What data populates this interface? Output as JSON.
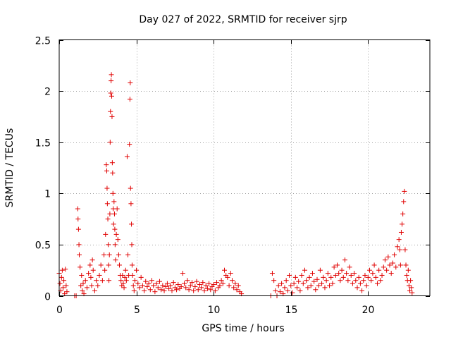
{
  "chart_data": {
    "type": "scatter",
    "title": "Day 027 of 2022, SRMTID for receiver sjrp",
    "xlabel": "GPS time / hours",
    "ylabel": "SRMTID / TECUs",
    "xlim": [
      0,
      24
    ],
    "ylim": [
      0,
      2.5
    ],
    "xticks": [
      0,
      5,
      10,
      15,
      20
    ],
    "xtick_labels": [
      "0",
      "5",
      "10",
      "15",
      "20"
    ],
    "yticks": [
      0,
      0.5,
      1,
      1.5,
      2,
      2.5
    ],
    "ytick_labels": [
      "0",
      "0.5",
      "1",
      "1.5",
      "2",
      "2.5"
    ],
    "grid": true,
    "marker": "+",
    "color": "#e00000",
    "series": [
      {
        "name": "SRMTID",
        "points": [
          [
            0.0,
            0.22
          ],
          [
            0.05,
            0.12
          ],
          [
            0.1,
            0.05
          ],
          [
            0.15,
            0.18
          ],
          [
            0.2,
            0.25
          ],
          [
            0.25,
            0.08
          ],
          [
            0.3,
            0.15
          ],
          [
            0.35,
            0.02
          ],
          [
            0.4,
            0.26
          ],
          [
            0.45,
            0.1
          ],
          [
            0.5,
            0.04
          ],
          [
            1.0,
            0.0
          ],
          [
            1.1,
            0.0
          ],
          [
            1.2,
            0.85
          ],
          [
            1.22,
            0.75
          ],
          [
            1.25,
            0.65
          ],
          [
            1.28,
            0.5
          ],
          [
            1.3,
            0.4
          ],
          [
            1.35,
            0.28
          ],
          [
            1.4,
            0.1
          ],
          [
            1.45,
            0.2
          ],
          [
            1.5,
            0.05
          ],
          [
            1.55,
            0.12
          ],
          [
            1.6,
            0.02
          ],
          [
            1.7,
            0.15
          ],
          [
            1.8,
            0.08
          ],
          [
            1.9,
            0.22
          ],
          [
            2.0,
            0.3
          ],
          [
            2.05,
            0.18
          ],
          [
            2.1,
            0.1
          ],
          [
            2.15,
            0.35
          ],
          [
            2.2,
            0.25
          ],
          [
            2.3,
            0.05
          ],
          [
            2.4,
            0.15
          ],
          [
            2.5,
            0.1
          ],
          [
            2.6,
            0.2
          ],
          [
            2.7,
            0.3
          ],
          [
            2.8,
            0.15
          ],
          [
            2.9,
            0.4
          ],
          [
            2.95,
            0.25
          ],
          [
            3.0,
            0.6
          ],
          [
            3.05,
            1.28
          ],
          [
            3.08,
            1.22
          ],
          [
            3.1,
            1.05
          ],
          [
            3.12,
            0.9
          ],
          [
            3.15,
            0.75
          ],
          [
            3.18,
            0.5
          ],
          [
            3.2,
            0.3
          ],
          [
            3.22,
            0.15
          ],
          [
            3.25,
            0.4
          ],
          [
            3.28,
            0.8
          ],
          [
            3.3,
            1.5
          ],
          [
            3.32,
            1.8
          ],
          [
            3.34,
            1.98
          ],
          [
            3.36,
            2.1
          ],
          [
            3.38,
            2.16
          ],
          [
            3.4,
            1.95
          ],
          [
            3.42,
            1.75
          ],
          [
            3.44,
            1.3
          ],
          [
            3.46,
            1.2
          ],
          [
            3.48,
            1.0
          ],
          [
            3.5,
            0.85
          ],
          [
            3.52,
            0.7
          ],
          [
            3.55,
            0.92
          ],
          [
            3.58,
            0.8
          ],
          [
            3.6,
            0.65
          ],
          [
            3.62,
            0.5
          ],
          [
            3.65,
            0.35
          ],
          [
            3.7,
            0.6
          ],
          [
            3.75,
            0.85
          ],
          [
            3.8,
            0.55
          ],
          [
            3.85,
            0.4
          ],
          [
            3.9,
            0.3
          ],
          [
            3.95,
            0.2
          ],
          [
            4.0,
            0.15
          ],
          [
            4.05,
            0.1
          ],
          [
            4.1,
            0.2
          ],
          [
            4.15,
            0.12
          ],
          [
            4.2,
            0.08
          ],
          [
            4.25,
            0.18
          ],
          [
            4.3,
            0.25
          ],
          [
            4.35,
            0.15
          ],
          [
            4.4,
            1.36
          ],
          [
            4.45,
            0.4
          ],
          [
            4.5,
            0.2
          ],
          [
            4.55,
            1.48
          ],
          [
            4.58,
            1.92
          ],
          [
            4.6,
            2.08
          ],
          [
            4.62,
            1.05
          ],
          [
            4.65,
            0.9
          ],
          [
            4.68,
            0.7
          ],
          [
            4.7,
            0.5
          ],
          [
            4.72,
            0.3
          ],
          [
            4.75,
            0.2
          ],
          [
            4.8,
            0.1
          ],
          [
            4.85,
            0.05
          ],
          [
            4.9,
            0.15
          ],
          [
            5.0,
            0.25
          ],
          [
            5.1,
            0.12
          ],
          [
            5.2,
            0.08
          ],
          [
            5.3,
            0.18
          ],
          [
            5.4,
            0.1
          ],
          [
            5.5,
            0.05
          ],
          [
            5.6,
            0.14
          ],
          [
            5.7,
            0.09
          ],
          [
            5.8,
            0.12
          ],
          [
            5.9,
            0.06
          ],
          [
            6.0,
            0.15
          ],
          [
            6.1,
            0.1
          ],
          [
            6.2,
            0.04
          ],
          [
            6.3,
            0.12
          ],
          [
            6.4,
            0.08
          ],
          [
            6.5,
            0.14
          ],
          [
            6.6,
            0.06
          ],
          [
            6.7,
            0.1
          ],
          [
            6.8,
            0.05
          ],
          [
            6.9,
            0.09
          ],
          [
            7.0,
            0.12
          ],
          [
            7.1,
            0.07
          ],
          [
            7.2,
            0.1
          ],
          [
            7.3,
            0.05
          ],
          [
            7.4,
            0.13
          ],
          [
            7.5,
            0.08
          ],
          [
            7.6,
            0.06
          ],
          [
            7.7,
            0.11
          ],
          [
            7.8,
            0.07
          ],
          [
            7.9,
            0.09
          ],
          [
            8.0,
            0.22
          ],
          [
            8.1,
            0.12
          ],
          [
            8.2,
            0.08
          ],
          [
            8.3,
            0.15
          ],
          [
            8.4,
            0.06
          ],
          [
            8.5,
            0.1
          ],
          [
            8.6,
            0.13
          ],
          [
            8.7,
            0.05
          ],
          [
            8.8,
            0.09
          ],
          [
            8.9,
            0.14
          ],
          [
            9.0,
            0.06
          ],
          [
            9.1,
            0.11
          ],
          [
            9.2,
            0.08
          ],
          [
            9.3,
            0.13
          ],
          [
            9.4,
            0.05
          ],
          [
            9.5,
            0.1
          ],
          [
            9.6,
            0.07
          ],
          [
            9.7,
            0.12
          ],
          [
            9.8,
            0.06
          ],
          [
            9.9,
            0.09
          ],
          [
            10.0,
            0.11
          ],
          [
            10.1,
            0.05
          ],
          [
            10.2,
            0.13
          ],
          [
            10.3,
            0.08
          ],
          [
            10.4,
            0.1
          ],
          [
            10.5,
            0.15
          ],
          [
            10.6,
            0.12
          ],
          [
            10.7,
            0.25
          ],
          [
            10.8,
            0.2
          ],
          [
            10.9,
            0.18
          ],
          [
            11.0,
            0.1
          ],
          [
            11.1,
            0.22
          ],
          [
            11.2,
            0.15
          ],
          [
            11.3,
            0.08
          ],
          [
            11.4,
            0.12
          ],
          [
            11.5,
            0.06
          ],
          [
            11.6,
            0.1
          ],
          [
            11.7,
            0.04
          ],
          [
            11.8,
            0.02
          ],
          [
            13.7,
            0.0
          ],
          [
            13.8,
            0.22
          ],
          [
            13.9,
            0.15
          ],
          [
            14.0,
            0.05
          ],
          [
            14.1,
            0.0
          ],
          [
            14.2,
            0.1
          ],
          [
            14.3,
            0.04
          ],
          [
            14.4,
            0.12
          ],
          [
            14.5,
            0.02
          ],
          [
            14.6,
            0.08
          ],
          [
            14.7,
            0.15
          ],
          [
            14.8,
            0.05
          ],
          [
            14.9,
            0.2
          ],
          [
            15.0,
            0.1
          ],
          [
            15.1,
            0.03
          ],
          [
            15.2,
            0.12
          ],
          [
            15.3,
            0.18
          ],
          [
            15.4,
            0.08
          ],
          [
            15.5,
            0.14
          ],
          [
            15.6,
            0.05
          ],
          [
            15.7,
            0.2
          ],
          [
            15.8,
            0.12
          ],
          [
            15.9,
            0.25
          ],
          [
            16.0,
            0.15
          ],
          [
            16.1,
            0.08
          ],
          [
            16.2,
            0.18
          ],
          [
            16.3,
            0.1
          ],
          [
            16.4,
            0.22
          ],
          [
            16.5,
            0.14
          ],
          [
            16.6,
            0.06
          ],
          [
            16.7,
            0.16
          ],
          [
            16.8,
            0.1
          ],
          [
            16.9,
            0.25
          ],
          [
            17.0,
            0.12
          ],
          [
            17.1,
            0.18
          ],
          [
            17.2,
            0.08
          ],
          [
            17.3,
            0.15
          ],
          [
            17.4,
            0.22
          ],
          [
            17.5,
            0.1
          ],
          [
            17.6,
            0.18
          ],
          [
            17.7,
            0.12
          ],
          [
            17.8,
            0.28
          ],
          [
            17.9,
            0.2
          ],
          [
            18.0,
            0.3
          ],
          [
            18.1,
            0.22
          ],
          [
            18.2,
            0.15
          ],
          [
            18.3,
            0.25
          ],
          [
            18.4,
            0.18
          ],
          [
            18.5,
            0.35
          ],
          [
            18.6,
            0.22
          ],
          [
            18.7,
            0.15
          ],
          [
            18.8,
            0.28
          ],
          [
            18.9,
            0.2
          ],
          [
            19.0,
            0.12
          ],
          [
            19.1,
            0.22
          ],
          [
            19.2,
            0.15
          ],
          [
            19.3,
            0.08
          ],
          [
            19.4,
            0.18
          ],
          [
            19.5,
            0.12
          ],
          [
            19.6,
            0.05
          ],
          [
            19.7,
            0.15
          ],
          [
            19.8,
            0.2
          ],
          [
            19.9,
            0.1
          ],
          [
            20.0,
            0.18
          ],
          [
            20.1,
            0.25
          ],
          [
            20.2,
            0.15
          ],
          [
            20.3,
            0.22
          ],
          [
            20.4,
            0.3
          ],
          [
            20.5,
            0.18
          ],
          [
            20.6,
            0.12
          ],
          [
            20.7,
            0.25
          ],
          [
            20.8,
            0.15
          ],
          [
            20.9,
            0.2
          ],
          [
            21.0,
            0.28
          ],
          [
            21.1,
            0.35
          ],
          [
            21.2,
            0.25
          ],
          [
            21.3,
            0.38
          ],
          [
            21.4,
            0.3
          ],
          [
            21.5,
            0.22
          ],
          [
            21.6,
            0.32
          ],
          [
            21.7,
            0.4
          ],
          [
            21.8,
            0.28
          ],
          [
            21.9,
            0.48
          ],
          [
            22.0,
            0.55
          ],
          [
            22.05,
            0.45
          ],
          [
            22.1,
            0.3
          ],
          [
            22.15,
            0.62
          ],
          [
            22.2,
            0.7
          ],
          [
            22.25,
            0.8
          ],
          [
            22.3,
            0.92
          ],
          [
            22.35,
            1.02
          ],
          [
            22.4,
            0.45
          ],
          [
            22.45,
            0.3
          ],
          [
            22.5,
            0.2
          ],
          [
            22.55,
            0.15
          ],
          [
            22.6,
            0.25
          ],
          [
            22.65,
            0.1
          ],
          [
            22.7,
            0.05
          ],
          [
            22.75,
            0.15
          ],
          [
            22.8,
            0.08
          ],
          [
            22.85,
            0.03
          ]
        ]
      }
    ]
  }
}
